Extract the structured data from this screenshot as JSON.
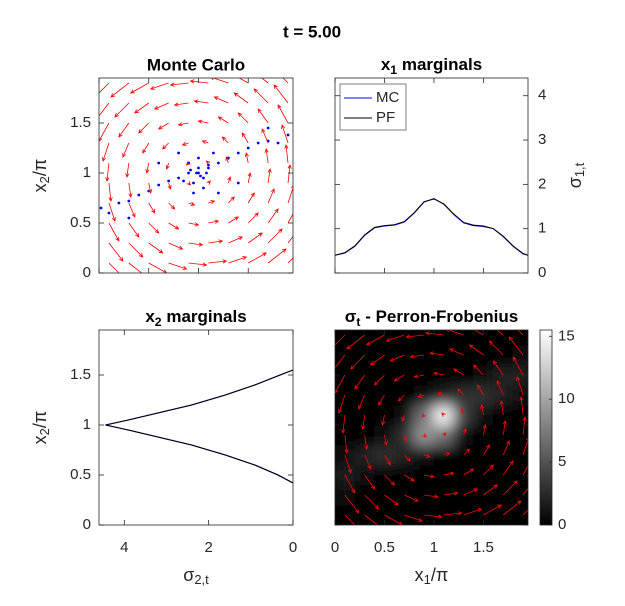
{
  "title": "t = 5.00",
  "field": {
    "color": "#ff0000",
    "x": [
      0.1,
      0.3,
      0.5,
      0.7,
      0.9,
      1.1,
      1.3,
      1.5,
      1.7,
      1.9
    ],
    "y": [
      0.1,
      0.3,
      0.5,
      0.7,
      0.9,
      1.1,
      1.3,
      1.5,
      1.7,
      1.9
    ],
    "u": [
      [
        0.18,
        0.18,
        0.18,
        0.18,
        0.18,
        0.18,
        0.18,
        0.18,
        0.18,
        0.18
      ],
      [
        0.14,
        0.14,
        0.14,
        0.14,
        0.14,
        0.14,
        0.14,
        0.14,
        0.14,
        0.14
      ],
      [
        0.1,
        0.1,
        0.1,
        0.1,
        0.1,
        0.1,
        0.1,
        0.1,
        0.1,
        0.1
      ],
      [
        0.06,
        0.06,
        0.06,
        0.06,
        0.06,
        0.06,
        0.06,
        0.06,
        0.06,
        0.06
      ],
      [
        0.02,
        0.02,
        0.02,
        0.02,
        0.02,
        0.02,
        0.02,
        0.02,
        0.02,
        0.02
      ],
      [
        -0.02,
        -0.02,
        -0.02,
        -0.02,
        -0.02,
        -0.02,
        -0.02,
        -0.02,
        -0.02,
        -0.02
      ],
      [
        -0.06,
        -0.06,
        -0.06,
        -0.06,
        -0.06,
        -0.06,
        -0.06,
        -0.06,
        -0.06,
        -0.06
      ],
      [
        -0.1,
        -0.1,
        -0.1,
        -0.1,
        -0.1,
        -0.1,
        -0.1,
        -0.1,
        -0.1,
        -0.1
      ],
      [
        -0.14,
        -0.14,
        -0.14,
        -0.14,
        -0.14,
        -0.14,
        -0.14,
        -0.14,
        -0.14,
        -0.14
      ],
      [
        -0.18,
        -0.18,
        -0.18,
        -0.18,
        -0.18,
        -0.18,
        -0.18,
        -0.18,
        -0.18,
        -0.18
      ]
    ],
    "v": [
      [
        -0.18,
        -0.14,
        -0.1,
        -0.06,
        -0.02,
        0.02,
        0.06,
        0.1,
        0.14,
        0.18
      ],
      [
        -0.18,
        -0.14,
        -0.1,
        -0.06,
        -0.02,
        0.02,
        0.06,
        0.1,
        0.14,
        0.18
      ],
      [
        -0.18,
        -0.14,
        -0.1,
        -0.06,
        -0.02,
        0.02,
        0.06,
        0.1,
        0.14,
        0.18
      ],
      [
        -0.18,
        -0.14,
        -0.1,
        -0.06,
        -0.02,
        0.02,
        0.06,
        0.1,
        0.14,
        0.18
      ],
      [
        -0.18,
        -0.14,
        -0.1,
        -0.06,
        -0.02,
        0.02,
        0.06,
        0.1,
        0.14,
        0.18
      ],
      [
        -0.18,
        -0.14,
        -0.1,
        -0.06,
        -0.02,
        0.02,
        0.06,
        0.1,
        0.14,
        0.18
      ],
      [
        -0.18,
        -0.14,
        -0.1,
        -0.06,
        -0.02,
        0.02,
        0.06,
        0.1,
        0.14,
        0.18
      ],
      [
        -0.18,
        -0.14,
        -0.1,
        -0.06,
        -0.02,
        0.02,
        0.06,
        0.1,
        0.14,
        0.18
      ],
      [
        -0.18,
        -0.14,
        -0.1,
        -0.06,
        -0.02,
        0.02,
        0.06,
        0.1,
        0.14,
        0.18
      ],
      [
        -0.18,
        -0.14,
        -0.1,
        -0.06,
        -0.02,
        0.02,
        0.06,
        0.1,
        0.14,
        0.18
      ]
    ]
  },
  "chart_data": [
    {
      "type": "scatter",
      "title": "Monte Carlo",
      "ylabel": {
        "main": "x",
        "sub": "2",
        "tail": "/π"
      },
      "color": "#0000ff",
      "quiver": true,
      "x": [
        0.02,
        0.1,
        0.2,
        0.3,
        0.4,
        0.5,
        0.6,
        0.7,
        0.8,
        0.9,
        1.0,
        1.1,
        1.2,
        1.3,
        1.4,
        1.5,
        1.6,
        1.7,
        1.8,
        1.9,
        0.9,
        0.95,
        1.0,
        1.05,
        1.1,
        0.85,
        1.0,
        1.15,
        0.95,
        1.05,
        0.3,
        1.7,
        0.6,
        1.4,
        0.8,
        1.2,
        0.98,
        1.02,
        0.92,
        1.08
      ],
      "values": [
        0.65,
        0.6,
        0.7,
        0.72,
        0.78,
        0.82,
        0.88,
        0.92,
        0.95,
        1.0,
        1.0,
        1.05,
        1.1,
        1.15,
        1.2,
        1.25,
        1.3,
        1.32,
        1.3,
        1.38,
        1.1,
        0.9,
        1.05,
        0.95,
        1.08,
        0.92,
        1.15,
        1.2,
        0.8,
        0.85,
        0.55,
        1.45,
        1.1,
        0.9,
        1.2,
        0.8,
        1.0,
        0.97,
        1.03,
        1.0
      ],
      "xlim": [
        0,
        1.95
      ],
      "ylim": [
        0,
        1.95
      ],
      "xticks": [
        0,
        0.5,
        1,
        1.5
      ],
      "yticks": [
        0,
        0.5,
        1,
        1.5
      ]
    },
    {
      "type": "line",
      "title": {
        "main": "x",
        "sub": "1",
        "tail": " marginals"
      },
      "ylabel": {
        "main": "σ",
        "sub": "1,t"
      },
      "yaxis": "right",
      "legend": "upper left",
      "x": [
        0,
        0.1,
        0.2,
        0.3,
        0.4,
        0.5,
        0.6,
        0.7,
        0.8,
        0.9,
        1.0,
        1.1,
        1.2,
        1.3,
        1.4,
        1.5,
        1.6,
        1.7,
        1.8,
        1.9,
        1.95
      ],
      "series": [
        {
          "name": "MC",
          "color": "#0000ff",
          "values": [
            0.4,
            0.45,
            0.6,
            0.85,
            1.02,
            1.06,
            1.08,
            1.15,
            1.35,
            1.6,
            1.68,
            1.55,
            1.32,
            1.13,
            1.07,
            1.05,
            1.0,
            0.82,
            0.6,
            0.43,
            0.4
          ]
        },
        {
          "name": "PF",
          "color": "#000000",
          "values": [
            0.4,
            0.46,
            0.61,
            0.86,
            1.03,
            1.07,
            1.09,
            1.16,
            1.36,
            1.61,
            1.67,
            1.56,
            1.33,
            1.14,
            1.08,
            1.06,
            1.0,
            0.83,
            0.61,
            0.44,
            0.4
          ]
        }
      ],
      "xlim": [
        0,
        1.95
      ],
      "ylim": [
        0,
        4.4
      ],
      "xticks": [
        0,
        0.5,
        1,
        1.5
      ],
      "yticks": [
        0,
        1,
        2,
        3,
        4
      ]
    },
    {
      "type": "line",
      "orientation": "horizontal",
      "title": {
        "main": "x",
        "sub": "2",
        "tail": " marginals"
      },
      "xlabel": {
        "main": "σ",
        "sub": "2,t"
      },
      "ylabel": {
        "main": "x",
        "sub": "2",
        "tail": "/π"
      },
      "y": [
        0.42,
        0.5,
        0.6,
        0.7,
        0.8,
        0.9,
        0.95,
        1.0,
        1.05,
        1.1,
        1.2,
        1.3,
        1.4,
        1.5,
        1.55
      ],
      "series": [
        {
          "color": "#0000ff",
          "values": [
            0,
            0.35,
            0.9,
            1.6,
            2.4,
            3.4,
            3.9,
            4.45,
            3.9,
            3.4,
            2.4,
            1.6,
            0.9,
            0.3,
            0
          ]
        },
        {
          "color": "#000000",
          "values": [
            0,
            0.36,
            0.91,
            1.61,
            2.41,
            3.41,
            3.91,
            4.44,
            3.91,
            3.41,
            2.41,
            1.61,
            0.91,
            0.31,
            0
          ]
        }
      ],
      "xlim": [
        4.6,
        0
      ],
      "ylim": [
        0,
        1.95
      ],
      "xticks": [
        4,
        2,
        0
      ],
      "yticks": [
        0,
        0.5,
        1,
        1.5
      ]
    },
    {
      "type": "heatmap",
      "title": {
        "main": "σ",
        "sub": "t",
        "tail": " - Perron-Frobenius"
      },
      "xlabel": {
        "main": "x",
        "sub": "1",
        "tail": "/π"
      },
      "colormap": "gray",
      "clim": [
        0,
        15.5
      ],
      "colorbar_ticks": [
        0,
        5,
        10,
        15
      ],
      "quiver": true,
      "values": [
        [
          0,
          0,
          0,
          0,
          0,
          0,
          0,
          0,
          0,
          0
        ],
        [
          1,
          0,
          0,
          0,
          0,
          0,
          0,
          0,
          0,
          0
        ],
        [
          2,
          1,
          0,
          0,
          0,
          0,
          0,
          0,
          0,
          0
        ],
        [
          1,
          2,
          3,
          2,
          1,
          0,
          0,
          0,
          0,
          0
        ],
        [
          0,
          0,
          1,
          3,
          9,
          7,
          1,
          0,
          0,
          0
        ],
        [
          0,
          0,
          0,
          1,
          7,
          15,
          4,
          1,
          0,
          0
        ],
        [
          0,
          0,
          0,
          0,
          1,
          2,
          3,
          3,
          2,
          1
        ],
        [
          0,
          0,
          0,
          0,
          0,
          0,
          0,
          1,
          2,
          2
        ],
        [
          0,
          0,
          0,
          0,
          0,
          0,
          0,
          0,
          0,
          1
        ],
        [
          0,
          0,
          0,
          0,
          0,
          0,
          0,
          0,
          0,
          0
        ]
      ],
      "xlim": [
        0,
        1.95
      ],
      "ylim": [
        0,
        1.95
      ],
      "xticks": [
        0,
        0.5,
        1,
        1.5
      ],
      "yticks": [
        0,
        0.5,
        1,
        1.5
      ]
    }
  ]
}
